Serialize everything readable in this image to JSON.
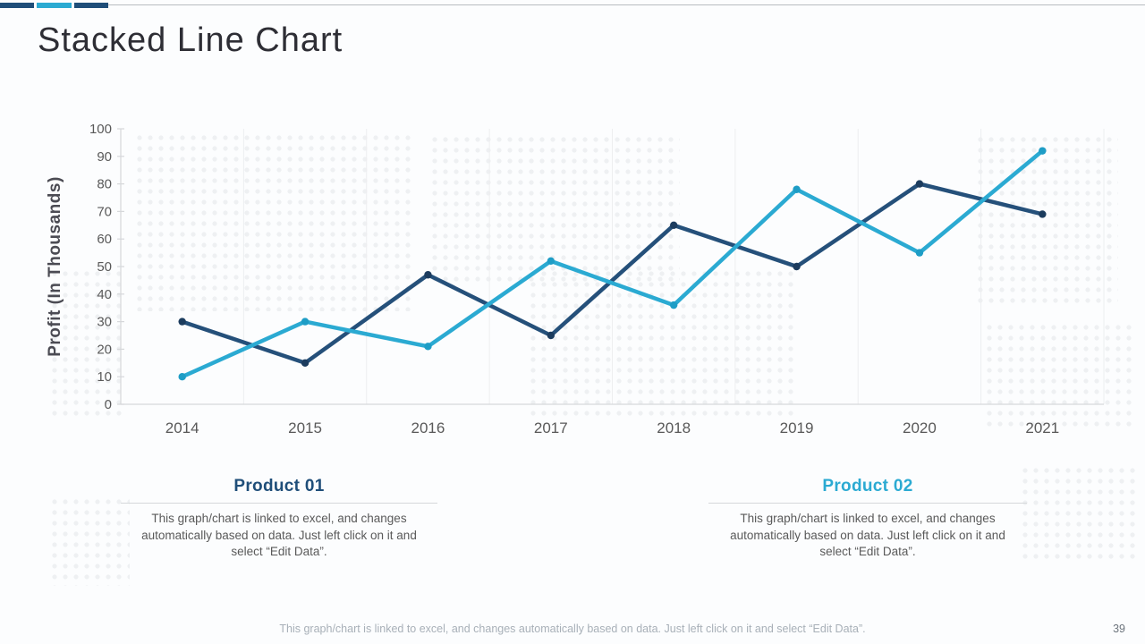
{
  "slide": {
    "title": "Stacked Line Chart",
    "page_number": "39",
    "footer_note": "This graph/chart is linked to excel, and changes automatically based on data. Just left click on it and select “Edit Data”."
  },
  "legend": {
    "product1": {
      "title": "Product 01",
      "color": "#1F4E79",
      "description": "This graph/chart is linked to excel, and changes automatically based on data. Just left click on it and select “Edit Data”."
    },
    "product2": {
      "title": "Product 02",
      "color": "#2BAAD2",
      "description": "This graph/chart is linked to excel, and changes automatically based on data. Just left click on it and select “Edit Data”."
    }
  },
  "chart_data": {
    "type": "line",
    "title": "",
    "xlabel": "",
    "ylabel": "Profit (In Thousands)",
    "categories": [
      "2014",
      "2015",
      "2016",
      "2017",
      "2018",
      "2019",
      "2020",
      "2021"
    ],
    "series": [
      {
        "name": "Product 01",
        "color": "#25507A",
        "marker_color": "#1C3C5E",
        "values": [
          30,
          15,
          47,
          25,
          65,
          50,
          80,
          69
        ]
      },
      {
        "name": "Product 02",
        "color": "#2BAAD2",
        "marker_color": "#1E9DC6",
        "values": [
          10,
          30,
          21,
          52,
          36,
          78,
          55,
          92
        ]
      }
    ],
    "ylim": [
      0,
      100
    ],
    "ytick_step": 10,
    "grid": "vertical-category-boundaries",
    "legend_position": "below-chart",
    "axis_color": "#d6d8da",
    "gridline_color": "#edeef0",
    "tick_label_color": "#595959"
  }
}
